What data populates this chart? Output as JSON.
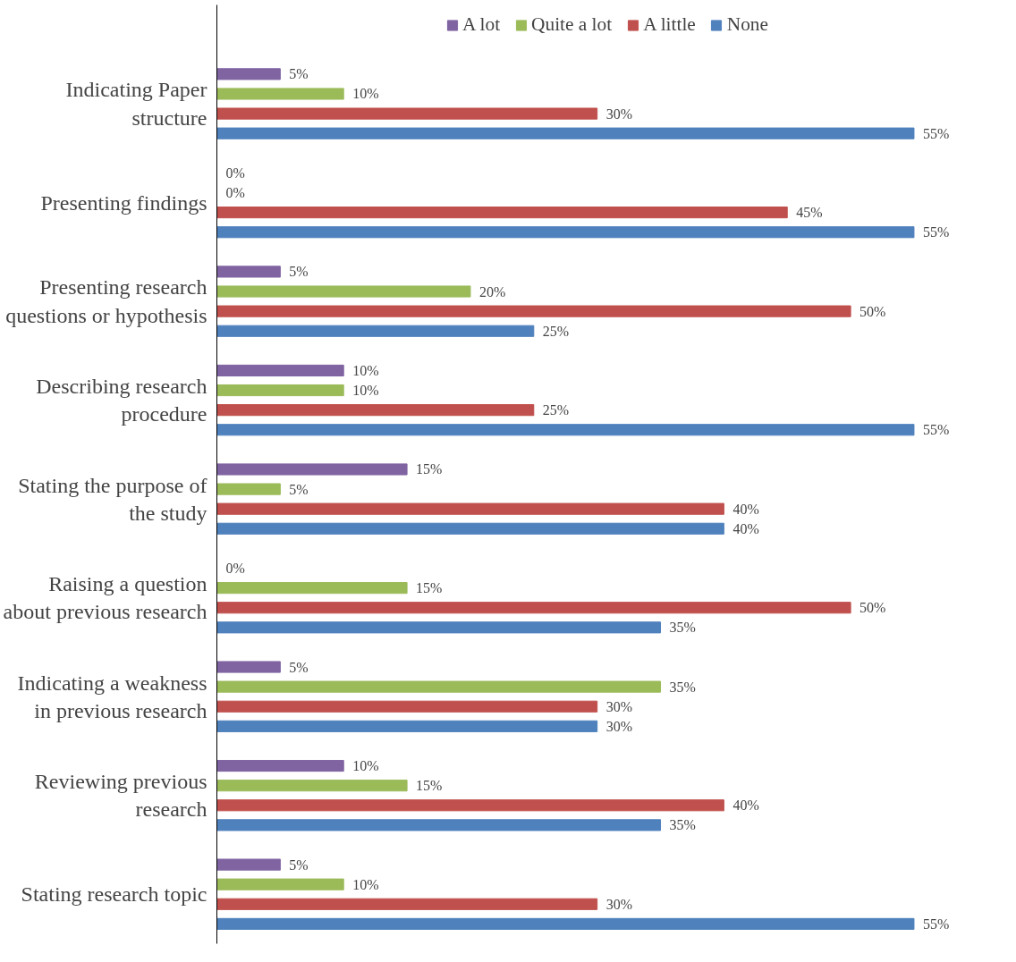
{
  "chart_data": {
    "type": "bar",
    "orientation": "horizontal",
    "legend": "top",
    "grid": false,
    "tick_labels": "y",
    "categories": [
      "Indicating Paper\nstructure",
      "Presenting findings",
      "Presenting research\nquestions or hypothesis",
      "Describing research\nprocedure",
      "Stating the purpose of\nthe study",
      "Raising a question\nabout previous research",
      "Indicating a weakness\nin previous research",
      "Reviewing previous\nresearch",
      "Stating research topic"
    ],
    "series": [
      {
        "name": "A lot",
        "color": "#8064a2",
        "values": [
          5,
          0,
          5,
          10,
          15,
          0,
          5,
          10,
          5
        ],
        "value_labels": [
          "5%",
          "0%",
          "5%",
          "10%",
          "15%",
          "0%",
          "5%",
          "10%",
          "5%"
        ]
      },
      {
        "name": "Quite a lot",
        "color": "#9bbb59",
        "values": [
          10,
          0,
          20,
          10,
          5,
          15,
          35,
          15,
          10
        ],
        "value_labels": [
          "10%",
          "0%",
          "20%",
          "10%",
          "5%",
          "15%",
          "35%",
          "15%",
          "10%"
        ]
      },
      {
        "name": "A little",
        "color": "#c0504d",
        "values": [
          30,
          45,
          50,
          25,
          40,
          50,
          30,
          40,
          30
        ],
        "value_labels": [
          "30%",
          "45%",
          "50%",
          "25%",
          "40%",
          "50%",
          "30%",
          "40%",
          "30%"
        ]
      },
      {
        "name": "None",
        "color": "#4f81bd",
        "values": [
          55,
          55,
          25,
          55,
          40,
          35,
          30,
          35,
          55
        ],
        "value_labels": [
          "55%",
          "55%",
          "25%",
          "55%",
          "40%",
          "35%",
          "30%",
          "35%",
          "55%"
        ]
      }
    ]
  }
}
